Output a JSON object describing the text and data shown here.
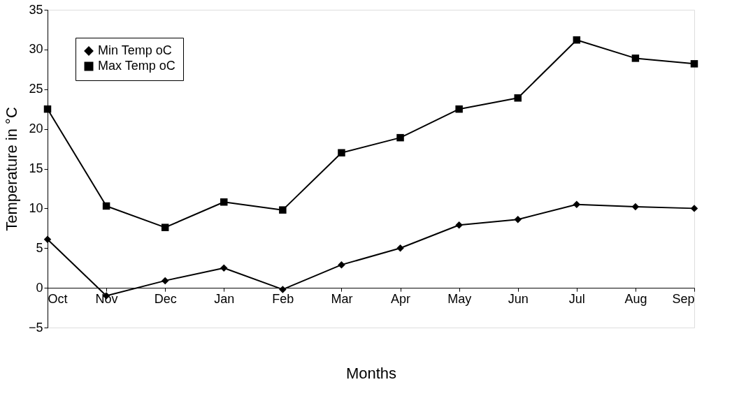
{
  "chart_data": {
    "type": "line",
    "xlabel": "Months",
    "ylabel": "Temperature in °C",
    "categories": [
      "Oct",
      "Nov",
      "Dec",
      "Jan",
      "Feb",
      "Mar",
      "Apr",
      "May",
      "Jun",
      "Jul",
      "Aug",
      "Sep"
    ],
    "series": [
      {
        "name": "Min Temp oC",
        "color": "#000000",
        "marker": "diamond",
        "values": [
          6.1,
          -1.0,
          0.9,
          2.5,
          -0.2,
          2.9,
          5.0,
          7.9,
          8.6,
          10.5,
          10.2,
          10.0
        ]
      },
      {
        "name": "Max Temp oC",
        "color": "#000000",
        "marker": "square",
        "values": [
          22.5,
          10.3,
          7.6,
          10.8,
          9.8,
          17.0,
          18.9,
          22.5,
          23.9,
          31.2,
          28.9,
          28.2
        ]
      }
    ],
    "ylim": [
      -5,
      35
    ],
    "yticks": [
      -5,
      0,
      5,
      10,
      15,
      20,
      25,
      30,
      35
    ],
    "grid": false,
    "legend": "top left",
    "line_style": "solid"
  }
}
